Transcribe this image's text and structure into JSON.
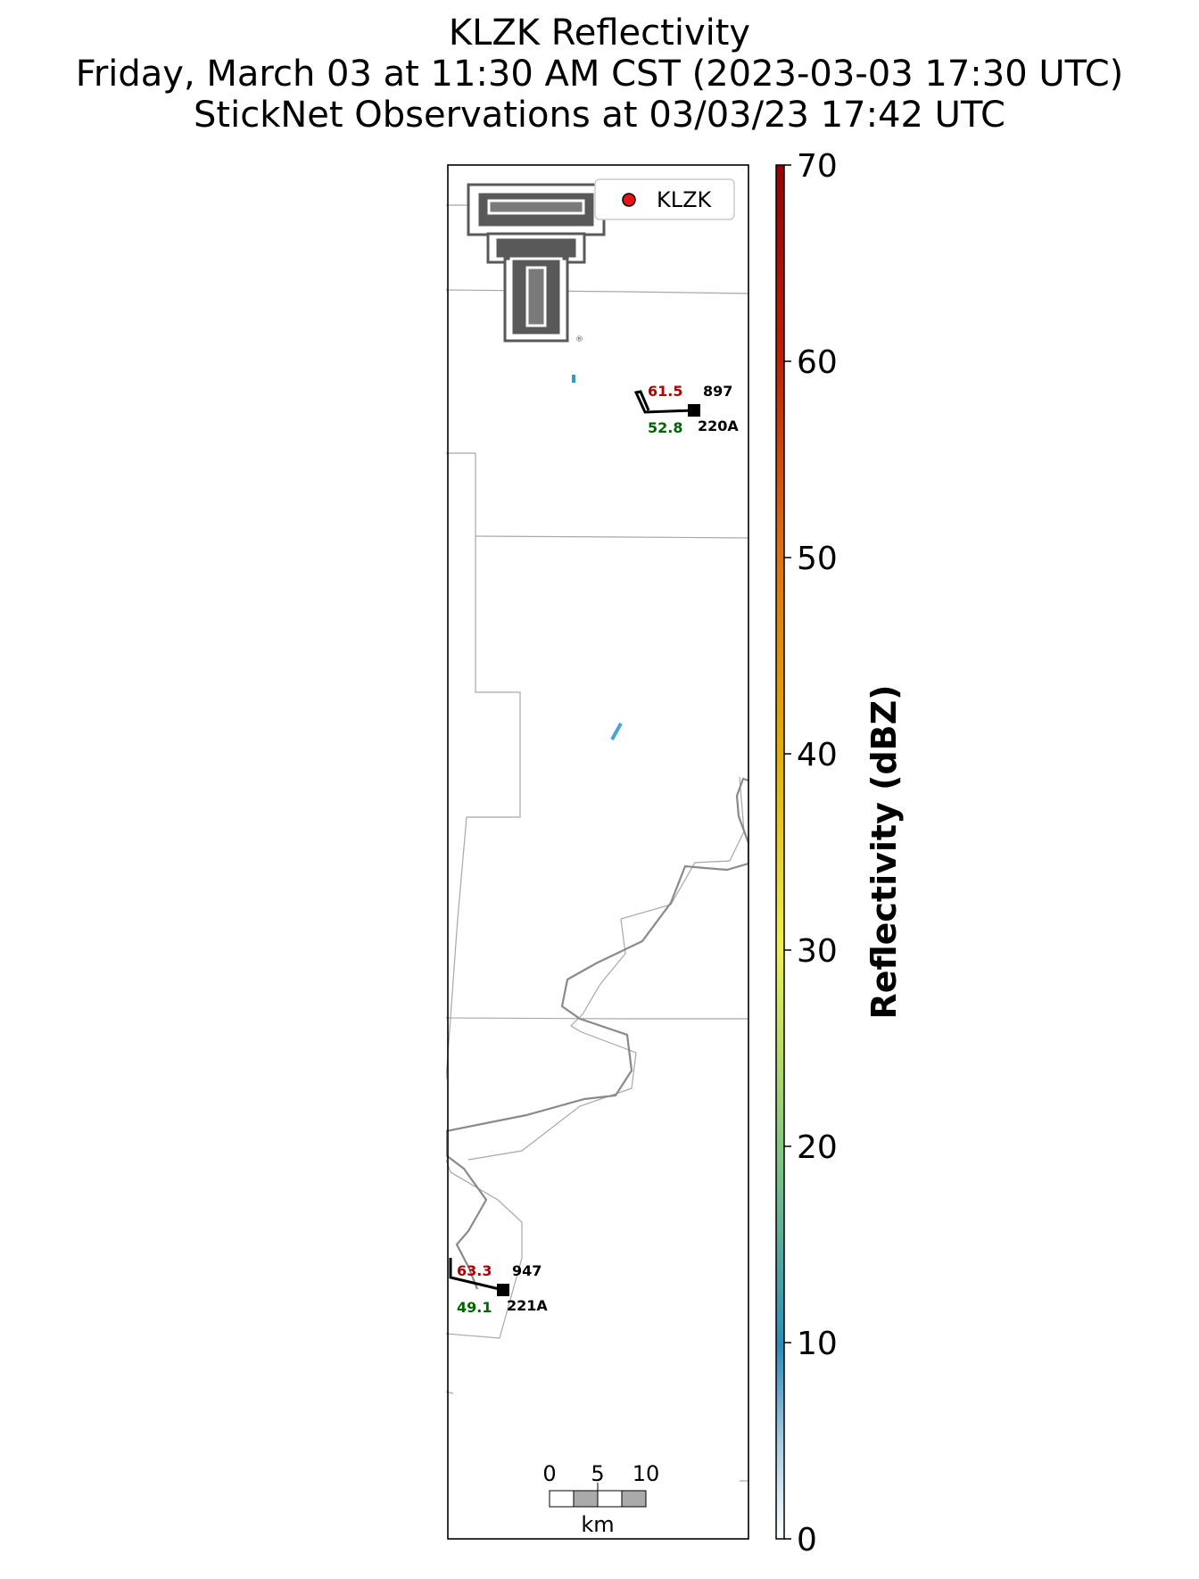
{
  "title": {
    "line1": "KLZK Reflectivity",
    "line2": "Friday, March 03 at 11:30 AM CST (2023-03-03 17:30 UTC)",
    "line3": "StickNet Observations at 03/03/23 17:42 UTC"
  },
  "legend": {
    "label": "KLZK",
    "marker_color": "#e8121b"
  },
  "colorbar": {
    "label": "Reflectivity (dBZ)",
    "ticks": [
      "0",
      "10",
      "20",
      "30",
      "40",
      "50",
      "60",
      "70"
    ],
    "range": [
      0,
      70
    ]
  },
  "scalebar": {
    "ticks": [
      "0",
      "5",
      "10"
    ],
    "unit": "km"
  },
  "stations": [
    {
      "id": "220A",
      "pressure": "897",
      "temperature": "61.5",
      "dewpoint": "52.8"
    },
    {
      "id": "221A",
      "pressure": "947",
      "temperature": "63.3",
      "dewpoint": "49.1"
    }
  ],
  "colors": {
    "temperature": "#b00000",
    "dewpoint": "#006400",
    "boundary": "#999999",
    "river": "#8a8a8a",
    "echo": "#3399cc"
  },
  "logo": {
    "name": "texas-tech-double-t-logo"
  }
}
